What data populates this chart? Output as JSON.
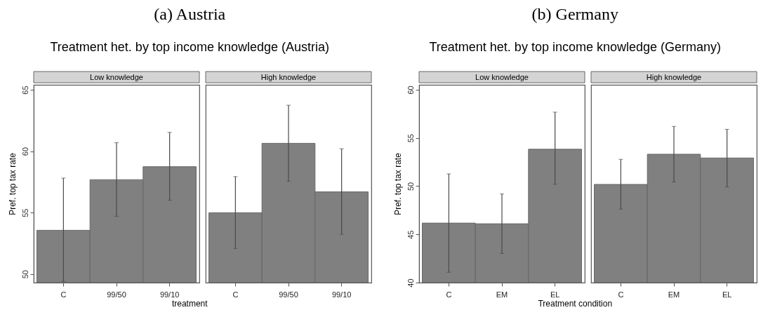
{
  "chart_data": [
    {
      "type": "bar",
      "annotations": [
        "(a) Austria"
      ],
      "title": "Treatment het. by top income knowledge (Austria)",
      "subtitle": "Low knowledge",
      "xlabel": "treatment",
      "ylabel": "Pref. top tax rate",
      "categories": [
        "C",
        "99/50",
        "99/10"
      ],
      "values": [
        53.56,
        57.68,
        58.74
      ],
      "errors": [
        [
          49.4,
          57.81
        ],
        [
          54.7,
          60.69
        ],
        [
          56.01,
          61.53
        ]
      ],
      "color": "#808080",
      "ylim": [
        49.3,
        65.4
      ],
      "yticks": [
        50,
        55,
        60,
        65
      ]
    },
    {
      "type": "bar",
      "subtitle": "High knowledge",
      "categories": [
        "C",
        "99/50",
        "99/10"
      ],
      "values": [
        54.99,
        60.64,
        56.69
      ],
      "errors": [
        [
          52.08,
          57.93
        ],
        [
          57.55,
          63.74
        ],
        [
          53.23,
          60.2
        ]
      ],
      "color": "#808080",
      "ylim": [
        49.3,
        65.4
      ],
      "yticks": [
        50,
        55,
        60,
        65
      ],
      "tick_labels": "x"
    },
    {
      "type": "bar",
      "annotations": [
        "(b) Germany"
      ],
      "title": "Treatment het. by top income knowledge (Germany)",
      "subtitle": "Low knowledge",
      "xlabel": "Treatment condition",
      "ylabel": "Pref. top tax rate",
      "categories": [
        "C",
        "EM",
        "EL"
      ],
      "values": [
        46.17,
        46.1,
        53.83
      ],
      "errors": [
        [
          41.08,
          51.27
        ],
        [
          43.02,
          49.19
        ],
        [
          50.2,
          57.67
        ]
      ],
      "color": "#808080",
      "ylim": [
        40,
        60.5
      ],
      "yticks": [
        40,
        45,
        50,
        55,
        60
      ]
    },
    {
      "type": "bar",
      "subtitle": "High knowledge",
      "categories": [
        "C",
        "EM",
        "EL"
      ],
      "values": [
        50.18,
        53.31,
        52.92
      ],
      "errors": [
        [
          47.62,
          52.78
        ],
        [
          50.43,
          56.19
        ],
        [
          49.92,
          55.89
        ]
      ],
      "color": "#808080",
      "ylim": [
        40,
        60.5
      ],
      "yticks": [
        40,
        45,
        50,
        55,
        60
      ],
      "tick_labels": "x"
    }
  ]
}
